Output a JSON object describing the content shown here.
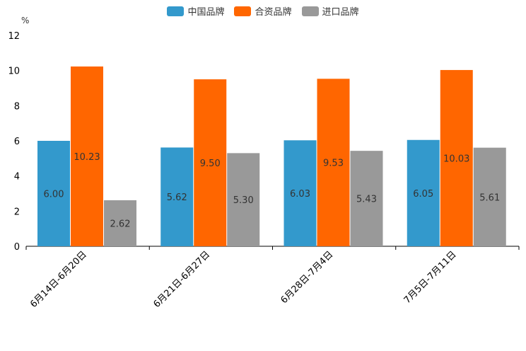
{
  "chart_data": {
    "type": "bar",
    "unit": "%",
    "categories": [
      "6月14日-6月20日",
      "6月21日-6月27日",
      "6月28日-7月4日",
      "7月5日-7月11日"
    ],
    "series": [
      {
        "name": "中国品牌",
        "color": "#3399cc",
        "values": [
          6.0,
          5.62,
          6.03,
          6.05
        ],
        "labels": [
          "6.00",
          "5.62",
          "6.03",
          "6.05"
        ]
      },
      {
        "name": "合资品牌",
        "color": "#ff6600",
        "values": [
          10.23,
          9.5,
          9.53,
          10.03
        ],
        "labels": [
          "10.23",
          "9.50",
          "9.53",
          "10.03"
        ]
      },
      {
        "name": "进口品牌",
        "color": "#999999",
        "values": [
          2.62,
          5.3,
          5.43,
          5.61
        ],
        "labels": [
          "2.62",
          "5.30",
          "5.43",
          "5.61"
        ]
      }
    ],
    "ylim": [
      0,
      12
    ],
    "yticks": [
      "0",
      "2",
      "4",
      "6",
      "8",
      "10",
      "12"
    ],
    "legend": "top-center",
    "grid": false
  }
}
